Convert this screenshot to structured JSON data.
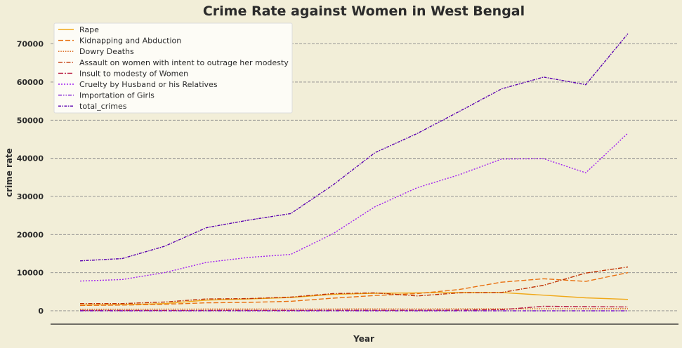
{
  "chart_data": {
    "type": "line",
    "title": "Crime Rate against Women in West Bengal",
    "xlabel": "Year",
    "ylabel": "crime rate",
    "x": [
      0,
      1,
      2,
      3,
      4,
      5,
      6,
      7,
      8,
      9,
      10,
      11,
      12,
      13
    ],
    "xlim": [
      -0.7,
      14.2
    ],
    "ylim": [
      -3500,
      76000
    ],
    "yticks": [
      0,
      10000,
      20000,
      30000,
      40000,
      50000,
      60000,
      70000
    ],
    "ytick_labels": [
      "0",
      "10000",
      "20000",
      "30000",
      "40000",
      "50000",
      "60000",
      "70000"
    ],
    "grid": "horizontal dashed",
    "legend_position": "top-left",
    "series": [
      {
        "name": "Rape",
        "color": "#f0a818",
        "dash": "solid",
        "values": [
          1500,
          1600,
          1900,
          2800,
          3100,
          3500,
          4300,
          4600,
          4700,
          4800,
          4800,
          4100,
          3400,
          3000
        ]
      },
      {
        "name": "Kidnapping and Abduction",
        "color": "#e87010",
        "dash": "long",
        "values": [
          1400,
          1500,
          1700,
          2100,
          2200,
          2500,
          3300,
          4000,
          4500,
          5600,
          7500,
          8400,
          7700,
          10000
        ]
      },
      {
        "name": "Dowry Deaths",
        "color": "#d86010",
        "dash": "dot",
        "values": [
          400,
          420,
          430,
          450,
          460,
          470,
          480,
          490,
          500,
          510,
          520,
          530,
          540,
          550
        ]
      },
      {
        "name": "Assault on women with intent to outrage her modesty",
        "color": "#c03000",
        "dash": "dashdot",
        "values": [
          1900,
          1900,
          2300,
          3100,
          3200,
          3600,
          4500,
          4700,
          3900,
          4700,
          4800,
          6700,
          9900,
          11500
        ]
      },
      {
        "name": "Insult to modesty of Women",
        "color": "#b81840",
        "dash": "dashdot2",
        "values": [
          80,
          90,
          100,
          110,
          120,
          130,
          140,
          150,
          160,
          180,
          300,
          1200,
          1100,
          1000
        ]
      },
      {
        "name": "Cruelty by Husband or his Relatives",
        "color": "#a020f0",
        "dash": "dot2",
        "values": [
          7800,
          8200,
          10000,
          12700,
          14000,
          14800,
          20200,
          27300,
          32300,
          35700,
          39800,
          39900,
          36200,
          46600
        ]
      },
      {
        "name": "Importation of Girls",
        "color": "#7a10d0",
        "dash": "dashdot3",
        "values": [
          0,
          0,
          0,
          0,
          0,
          0,
          0,
          0,
          0,
          0,
          0,
          0,
          0,
          0
        ]
      },
      {
        "name": "total_crimes",
        "color": "#5a00b0",
        "dash": "dashdotdot",
        "values": [
          13100,
          13700,
          16900,
          21800,
          23800,
          25500,
          33000,
          41500,
          46500,
          52300,
          58200,
          61300,
          59300,
          72700
        ]
      }
    ]
  }
}
